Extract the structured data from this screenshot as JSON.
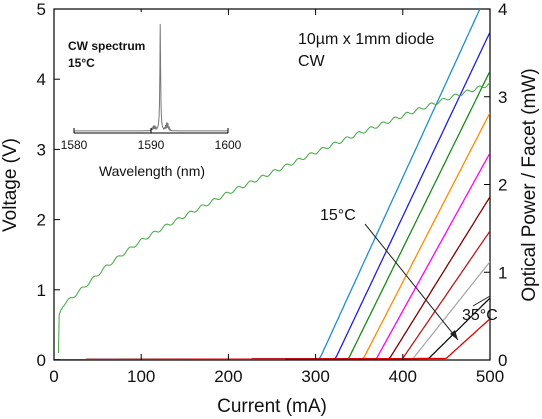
{
  "chart_data": {
    "type": "line",
    "xlabel": "Current (mA)",
    "ylabel_left": "Voltage (V)",
    "ylabel_right": "Optical Power / Facet (mW)",
    "xlim": [
      0,
      500
    ],
    "ylim_left": [
      0,
      5
    ],
    "ylim_right": [
      0,
      4
    ],
    "x_ticks": [
      0,
      100,
      200,
      300,
      400,
      500
    ],
    "y_left_ticks": [
      0,
      1,
      2,
      3,
      4,
      5
    ],
    "y_right_ticks": [
      0,
      1,
      2,
      3,
      4
    ],
    "annotations": {
      "device": "10µm x 1mm diode",
      "mode": "CW",
      "t_low": "15°C",
      "t_high": "35°C"
    },
    "voltage_curve": {
      "color": "#4fae4f",
      "axis": "left",
      "points": [
        [
          5,
          0.1
        ],
        [
          6,
          0.65
        ],
        [
          10,
          0.78
        ],
        [
          20,
          0.88
        ],
        [
          40,
          1.1
        ],
        [
          60,
          1.33
        ],
        [
          80,
          1.52
        ],
        [
          100,
          1.7
        ],
        [
          130,
          1.92
        ],
        [
          160,
          2.12
        ],
        [
          200,
          2.38
        ],
        [
          250,
          2.67
        ],
        [
          300,
          2.96
        ],
        [
          350,
          3.23
        ],
        [
          400,
          3.48
        ],
        [
          450,
          3.72
        ],
        [
          500,
          3.93
        ]
      ]
    },
    "power_curves": [
      {
        "color": "#1f8fd0",
        "threshold": 305,
        "slope": 0.0217
      },
      {
        "color": "#2020d8",
        "threshold": 323,
        "slope": 0.021
      },
      {
        "color": "#1a8a1a",
        "threshold": 338,
        "slope": 0.0202
      },
      {
        "color": "#ff8a00",
        "threshold": 355,
        "slope": 0.0193
      },
      {
        "color": "#ff00ff",
        "threshold": 370,
        "slope": 0.018
      },
      {
        "color": "#800000",
        "threshold": 385,
        "slope": 0.016
      },
      {
        "color": "#b91c1c",
        "threshold": 400,
        "slope": 0.0145
      },
      {
        "color": "#a9a9a9",
        "threshold": 412,
        "slope": 0.0125
      },
      {
        "color": "#111111",
        "threshold": 430,
        "slope": 0.0098
      },
      {
        "color": "#e00000",
        "threshold": 450,
        "slope": 0.009
      }
    ],
    "inset": {
      "type": "line",
      "title_line1": "CW spectrum",
      "title_line2": "15°C",
      "xlabel": "Wavelength (nm)",
      "xlim": [
        1580,
        1600
      ],
      "x_ticks": [
        1580,
        1590,
        1600
      ],
      "peak_nm": 1591.2,
      "color": "#777777"
    }
  }
}
